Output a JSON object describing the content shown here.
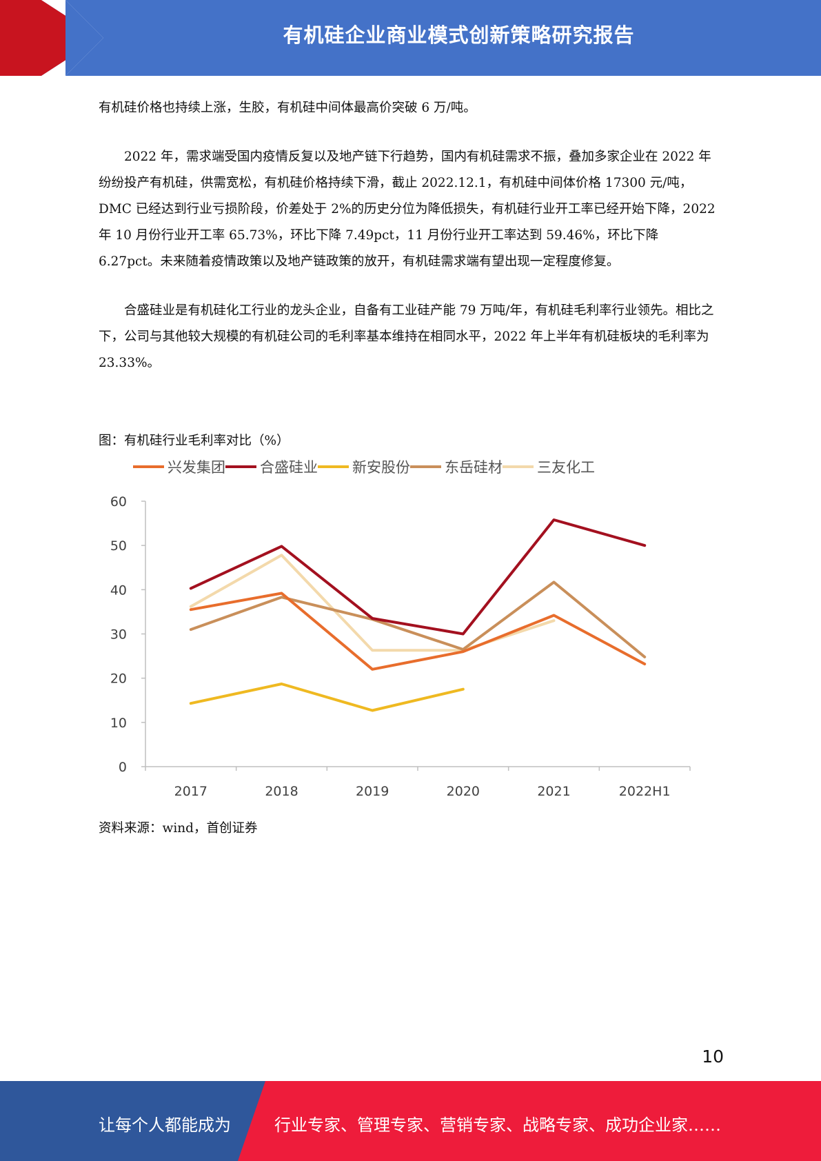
{
  "header": {
    "title": "有机硅企业商业模式创新策略研究报告"
  },
  "paragraphs": [
    "有机硅价格也持续上涨，生胶，有机硅中间体最高价突破 6 万/吨。",
    "2022 年，需求端受国内疫情反复以及地产链下行趋势，国内有机硅需求不振，叠加多家企业在 2022 年纷纷投产有机硅，供需宽松，有机硅价格持续下滑，截止 2022.12.1，有机硅中间体价格 17300 元/吨，DMC 已经达到行业亏损阶段，价差处于 2%的历史分位为降低损失，有机硅行业开工率已经开始下降，2022 年 10 月份行业开工率 65.73%，环比下降 7.49pct，11 月份行业开工率达到 59.46%，环比下降 6.27pct。未来随着疫情政策以及地产链政策的放开，有机硅需求端有望出现一定程度修复。",
    "合盛硅业是有机硅化工行业的龙头企业，自备有工业硅产能 79 万吨/年，有机硅毛利率行业领先。相比之下，公司与其他较大规模的有机硅公司的毛利率基本维持在相同水平，2022 年上半年有机硅板块的毛利率为 23.33%。"
  ],
  "figure": {
    "caption": "图：有机硅行业毛利率对比（%）",
    "source": "资料来源：wind，首创证券"
  },
  "chart_data": {
    "type": "line",
    "title": "",
    "xlabel": "",
    "ylabel": "",
    "categories": [
      "2017",
      "2018",
      "2019",
      "2020",
      "2021",
      "2022H1"
    ],
    "ylim": [
      0,
      60
    ],
    "yticks": [
      0,
      10,
      20,
      30,
      40,
      50,
      60
    ],
    "grid": false,
    "legend_position": "top",
    "series": [
      {
        "name": "兴发集团",
        "color": "#e86d2c",
        "values": [
          35.5,
          39.2,
          22.0,
          26.0,
          34.2,
          23.2
        ]
      },
      {
        "name": "合盛硅业",
        "color": "#a3101f",
        "values": [
          40.3,
          49.8,
          33.5,
          30.0,
          55.8,
          50.0
        ]
      },
      {
        "name": "新安股份",
        "color": "#efb921",
        "values": [
          14.3,
          18.7,
          12.7,
          17.5,
          null,
          null
        ]
      },
      {
        "name": "东岳硅材",
        "color": "#c98f5a",
        "values": [
          31.0,
          38.3,
          33.3,
          26.5,
          41.7,
          24.8
        ]
      },
      {
        "name": "三友化工",
        "color": "#f3d9ab",
        "values": [
          36.2,
          47.8,
          26.3,
          26.3,
          33.0,
          null
        ]
      }
    ]
  },
  "page_number": "10",
  "footer": {
    "left": "让每个人都能成为",
    "right": "行业专家、管理专家、营销专家、战略专家、成功企业家……"
  }
}
